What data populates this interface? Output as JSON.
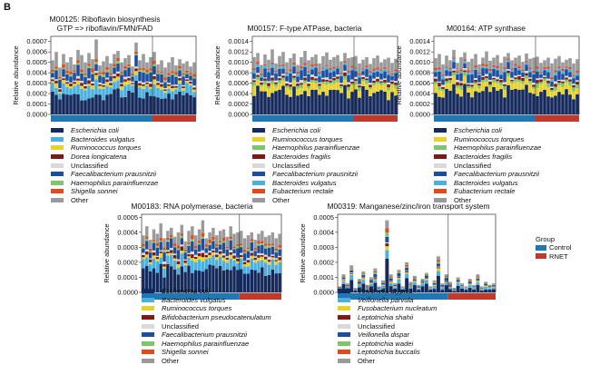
{
  "panel_label": "B",
  "group_legend": {
    "title": "Group",
    "items": [
      {
        "label": "Control",
        "color": "#1f78b4"
      },
      {
        "label": "RNET",
        "color": "#c0392b"
      }
    ]
  },
  "taxa_colors": {
    "Escherichia coli": "#152a5c",
    "Bacteroides vulgatus": "#4bb0df",
    "Ruminococcus torques": "#e8d22a",
    "Dorea longicatena": "#7a1a1a",
    "Unclassified": "#d9d9d9",
    "Faecalibacterium prausnitzii": "#1d4e9e",
    "Haemophilus parainfluenzae": "#7fc56a",
    "Shigella sonnei": "#e24a1e",
    "Other": "#9a9a9a",
    "Bacteroides fragilis": "#7a1a1a",
    "Eubacterium rectale": "#e24a1e",
    "Bifidobacterium pseudocatenulatum": "#7a1a1a",
    "Veillonella atypica": "#152a5c",
    "Veillonella parvula": "#4bb0df",
    "Fusobacterium nucleatum": "#e8d22a",
    "Leptotrichia shahii": "#7a1a1a",
    "Veillonella dispar": "#1d4e9e",
    "Leptotrichia wadei": "#7fc56a",
    "Leptotrichia buccalis": "#e24a1e"
  },
  "chart_data": [
    {
      "type": "bar",
      "stacked": true,
      "title": "M00125: Riboflavin biosynthesis\nGTP => riboflavin/FMN/FAD",
      "ylabel": "Relative abundance",
      "ylim": [
        0,
        0.00075
      ],
      "yticks": [
        "0.0000",
        "0.0001",
        "0.0002",
        "0.0003",
        "0.0004",
        "0.0005",
        "0.0006",
        "0.0007"
      ],
      "ytick_values": [
        0,
        0.0001,
        0.0002,
        0.0003,
        0.0004,
        0.0005,
        0.0006,
        0.0007
      ],
      "group_bar": [
        {
          "group": "Control",
          "samples": 28
        },
        {
          "group": "RNET",
          "samples": 12
        }
      ],
      "series_names": [
        "Escherichia coli",
        "Bacteroides vulgatus",
        "Ruminococcus torques",
        "Dorea longicatena",
        "Unclassified",
        "Faecalibacterium prausnitzii",
        "Haemophilus parainfluenzae",
        "Shigella sonnei",
        "Other"
      ],
      "totals": [
        0.00052,
        0.0006,
        0.00045,
        0.00058,
        0.0005,
        0.00055,
        0.00048,
        0.00062,
        0.00057,
        0.0005,
        0.00059,
        0.00053,
        0.00072,
        0.00047,
        0.00051,
        0.00056,
        0.00049,
        0.00058,
        0.00061,
        0.0005,
        0.00054,
        0.00057,
        0.00046,
        0.00069,
        0.00052,
        0.00058,
        0.0005,
        0.00055,
        0.0006,
        0.00048,
        0.00052,
        0.00045,
        0.0005,
        0.00055,
        0.00047,
        0.00053,
        0.00049,
        0.00051,
        0.00046,
        0.0005
      ]
    },
    {
      "type": "bar",
      "stacked": true,
      "title": "M00157: F-type ATPase, bacteria",
      "ylabel": "Relative abundance",
      "ylim": [
        0,
        0.0015
      ],
      "yticks": [
        "0.0000",
        "0.0002",
        "0.0004",
        "0.0006",
        "0.0008",
        "0.0010",
        "0.0012",
        "0.0014"
      ],
      "ytick_values": [
        0,
        0.0002,
        0.0004,
        0.0006,
        0.0008,
        0.001,
        0.0012,
        0.0014
      ],
      "group_bar": [
        {
          "group": "Control",
          "samples": 28
        },
        {
          "group": "RNET",
          "samples": 12
        }
      ],
      "series_names": [
        "Escherichia coli",
        "Ruminococcus torques",
        "Haemophilus parainfluenzae",
        "Bacteroides fragilis",
        "Unclassified",
        "Faecalibacterium prausnitzii",
        "Bacteroides vulgatus",
        "Eubacterium rectale",
        "Other"
      ],
      "totals": [
        0.0011,
        0.00118,
        0.00095,
        0.00115,
        0.00105,
        0.00125,
        0.00098,
        0.00112,
        0.0012,
        0.001,
        0.00108,
        0.00117,
        0.00095,
        0.0011,
        0.00122,
        0.00104,
        0.0011,
        0.00115,
        0.00098,
        0.00112,
        0.00119,
        0.00105,
        0.0011,
        0.00114,
        0.00102,
        0.00118,
        0.00108,
        0.0011,
        0.00112,
        0.00098,
        0.00105,
        0.0011,
        0.00097,
        0.00108,
        0.00113,
        0.001,
        0.00106,
        0.00109,
        0.00099,
        0.00107
      ]
    },
    {
      "type": "bar",
      "stacked": true,
      "title": "M00164: ATP synthase",
      "ylabel": "Relative abundance",
      "ylim": [
        0,
        0.0015
      ],
      "yticks": [
        "0.0000",
        "0.0002",
        "0.0004",
        "0.0006",
        "0.0008",
        "0.0010",
        "0.0012",
        "0.0014"
      ],
      "ytick_values": [
        0,
        0.0002,
        0.0004,
        0.0006,
        0.0008,
        0.001,
        0.0012,
        0.0014
      ],
      "group_bar": [
        {
          "group": "Control",
          "samples": 28
        },
        {
          "group": "RNET",
          "samples": 12
        }
      ],
      "series_names": [
        "Escherichia coli",
        "Ruminococcus torques",
        "Haemophilus parainfluenzae",
        "Bacteroides fragilis",
        "Unclassified",
        "Faecalibacterium prausnitzii",
        "Bacteroides vulgatus",
        "Eubacterium rectale",
        "Other"
      ],
      "totals": [
        0.00108,
        0.00116,
        0.00096,
        0.00113,
        0.00104,
        0.00124,
        0.00099,
        0.0011,
        0.00119,
        0.00101,
        0.00107,
        0.00116,
        0.00096,
        0.00109,
        0.00121,
        0.00103,
        0.00109,
        0.00114,
        0.00099,
        0.00111,
        0.00118,
        0.00104,
        0.00109,
        0.00113,
        0.00101,
        0.00117,
        0.00107,
        0.00109,
        0.00111,
        0.00099,
        0.00104,
        0.00109,
        0.00098,
        0.00107,
        0.00112,
        0.001,
        0.00105,
        0.00108,
        0.00098,
        0.00106
      ]
    },
    {
      "type": "bar",
      "stacked": true,
      "title": "M00183: RNA polymerase, bacteria",
      "ylabel": "Relative abundance",
      "ylim": [
        0,
        0.00052
      ],
      "yticks": [
        "0.0000",
        "0.0001",
        "0.0002",
        "0.0003",
        "0.0004",
        "0.0005"
      ],
      "ytick_values": [
        0,
        0.0001,
        0.0002,
        0.0003,
        0.0004,
        0.0005
      ],
      "group_bar": [
        {
          "group": "Control",
          "samples": 28
        },
        {
          "group": "RNET",
          "samples": 12
        }
      ],
      "series_names": [
        "Escherichia coli",
        "Bacteroides vulgatus",
        "Ruminococcus torques",
        "Bifidobacterium pseudocatenulatum",
        "Unclassified",
        "Faecalibacterium prausnitzii",
        "Haemophilus parainfluenzae",
        "Shigella sonnei",
        "Other"
      ],
      "totals": [
        0.00038,
        0.00044,
        0.00035,
        0.00042,
        0.00039,
        0.00046,
        0.00036,
        0.00041,
        0.00043,
        0.00037,
        0.0004,
        0.00045,
        0.00034,
        0.00041,
        0.00044,
        0.00038,
        0.00042,
        0.00048,
        0.00036,
        0.0004,
        0.00043,
        0.00038,
        0.00041,
        0.00042,
        0.00037,
        0.00044,
        0.00039,
        0.0004,
        0.00041,
        0.00036,
        0.00038,
        0.0004,
        0.00035,
        0.00039,
        0.00041,
        0.00037,
        0.00038,
        0.0004,
        0.00036,
        0.00039
      ]
    },
    {
      "type": "bar",
      "stacked": true,
      "title": "M00319: Manganese/zinc/iron transport system",
      "ylabel": "Relative abundance",
      "ylim": [
        0,
        0.00052
      ],
      "yticks": [
        "0.0000",
        "0.0001",
        "0.0002",
        "0.0003",
        "0.0004",
        "0.0005"
      ],
      "ytick_values": [
        0,
        0.0001,
        0.0002,
        0.0003,
        0.0004,
        0.0005
      ],
      "group_bar": [
        {
          "group": "Control",
          "samples": 28
        },
        {
          "group": "RNET",
          "samples": 12
        }
      ],
      "series_names": [
        "Veillonella atypica",
        "Veillonella parvula",
        "Fusobacterium nucleatum",
        "Leptotrichia shahii",
        "Unclassified",
        "Veillonella dispar",
        "Leptotrichia wadei",
        "Leptotrichia buccalis",
        "Other"
      ],
      "totals": [
        4e-05,
        0.00012,
        6e-05,
        0.00018,
        3e-05,
        9e-05,
        0.00014,
        5e-05,
        0.0001,
        0.00016,
        4e-05,
        8e-05,
        0.00048,
        0.00012,
        6e-05,
        0.00015,
        4e-05,
        0.0002,
        7e-05,
        0.00011,
        5e-05,
        9e-05,
        0.00013,
        4e-05,
        8e-05,
        0.00024,
        6e-05,
        0.00012,
        7e-05,
        3e-05,
        0.0001,
        6e-05,
        4e-05,
        9e-05,
        5e-05,
        0.00012,
        4e-05,
        7e-05,
        5e-05,
        6e-05
      ]
    }
  ]
}
